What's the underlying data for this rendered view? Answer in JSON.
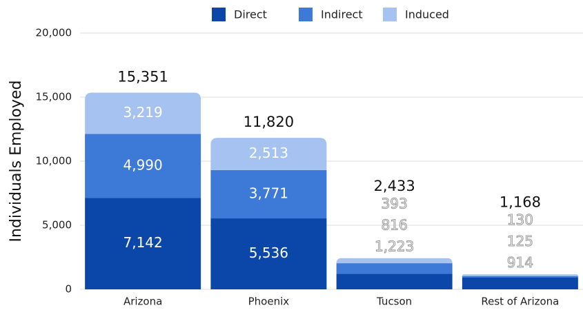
{
  "chart_data": {
    "type": "stacked_bar",
    "ylabel": "Individuals Employed",
    "categories": [
      "Arizona",
      "Phoenix",
      "Tucson",
      "Rest of Arizona"
    ],
    "series": [
      {
        "name": "Direct",
        "color": "#0a47a9",
        "values": [
          7142,
          5536,
          1223,
          914
        ],
        "value_labels": [
          "7,142",
          "5,536",
          "1,223",
          "914"
        ]
      },
      {
        "name": "Indirect",
        "color": "#3d7ad8",
        "values": [
          4990,
          3771,
          816,
          125
        ],
        "value_labels": [
          "4,990",
          "3,771",
          "816",
          "125"
        ]
      },
      {
        "name": "Induced",
        "color": "#a5c2f0",
        "values": [
          3219,
          2513,
          393,
          130
        ],
        "value_labels": [
          "3,219",
          "2,513",
          "393",
          "130"
        ]
      }
    ],
    "totals": [
      15351,
      11820,
      2433,
      1168
    ],
    "total_labels": [
      "15,351",
      "11,820",
      "2,433",
      "1,168"
    ],
    "ylim": [
      0,
      20000
    ],
    "yticks": [
      0,
      {
        "value": 5000,
        "label": "5,000"
      },
      {
        "value": 10000,
        "label": "10,000"
      },
      {
        "value": 15000,
        "label": "15,000"
      },
      {
        "value": 20000,
        "label": "20,000"
      }
    ],
    "grid": true,
    "legend": "top"
  }
}
